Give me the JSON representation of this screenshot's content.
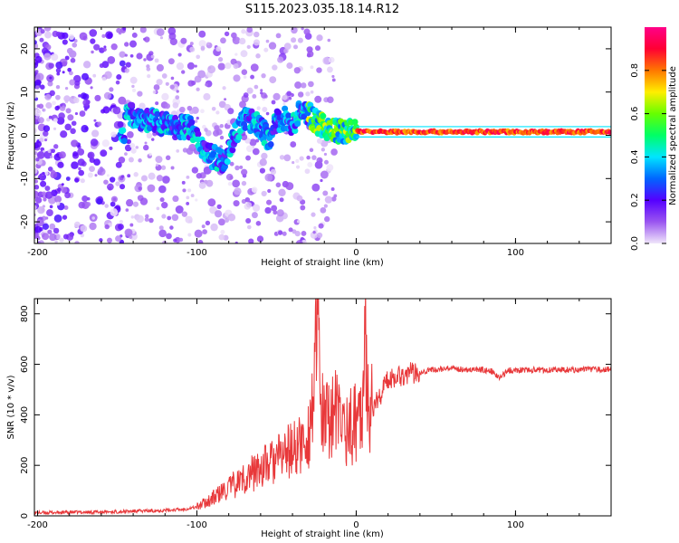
{
  "title": "S115.2023.035.18.14.R12",
  "chart_data": [
    {
      "type": "heatmap",
      "xlabel": "Height of straight line (km)",
      "ylabel": "Frequency (Hz)",
      "xlim": [
        -202,
        160
      ],
      "ylim": [
        -25,
        25
      ],
      "xticks": [
        -200,
        -100,
        0,
        100
      ],
      "xtick_labels": [
        "-200",
        "-100",
        "0",
        "100"
      ],
      "yticks": [
        -20,
        -10,
        0,
        10,
        20
      ],
      "ytick_labels": [
        "-20",
        "-10",
        "0",
        "10",
        "20"
      ],
      "colorbar": {
        "label": "Normalized spectral amplitude",
        "range": [
          0,
          1
        ],
        "ticks": [
          0,
          0.2,
          0.4,
          0.6,
          0.8
        ],
        "tick_labels": [
          "0.0",
          "0.2",
          "0.4",
          "0.6",
          "0.8"
        ],
        "colormap": [
          "#f0e6fa",
          "#9a55f0",
          "#5500ff",
          "#0066ff",
          "#00e5ff",
          "#00ff66",
          "#66ff00",
          "#ffee00",
          "#ff7700",
          "#ff0033",
          "#ff0088"
        ]
      },
      "ridge": {
        "x": [
          -145,
          -135,
          -125,
          -115,
          -105,
          -98,
          -90,
          -84,
          -80,
          -75,
          -70,
          -65,
          -60,
          -55,
          -50,
          -45,
          -40,
          -35,
          -30,
          -25,
          -20,
          -15,
          -10,
          -5,
          0,
          10,
          20,
          40,
          60,
          80,
          100,
          120,
          140,
          160
        ],
        "y": [
          5,
          4,
          3,
          2,
          2,
          -2,
          -5,
          -6,
          -3,
          1,
          4,
          3,
          2,
          -1,
          3,
          4,
          2,
          6,
          5,
          3,
          2,
          1,
          1,
          1,
          1,
          0.8,
          0.8,
          0.8,
          0.8,
          0.8,
          0.8,
          0.8,
          0.8,
          0.8
        ]
      }
    },
    {
      "type": "line",
      "xlabel": "Height of straight line (km)",
      "ylabel": "SNR (10 * v/v)",
      "xlim": [
        -202,
        160
      ],
      "ylim": [
        0,
        860
      ],
      "xticks": [
        -200,
        -100,
        0,
        100
      ],
      "xtick_labels": [
        "-200",
        "-100",
        "0",
        "100"
      ],
      "yticks": [
        0,
        200,
        400,
        600,
        800
      ],
      "ytick_labels": [
        "0",
        "200",
        "400",
        "600",
        "800"
      ],
      "color": "#e8383a",
      "series": [
        {
          "x": [
            -202,
            -180,
            -160,
            -140,
            -120,
            -110,
            -100,
            -90,
            -80,
            -70,
            -60,
            -50,
            -45,
            -40,
            -35,
            -30,
            -27,
            -25,
            -24,
            -23,
            -20,
            -15,
            -10,
            -5,
            0,
            5,
            6,
            8,
            10,
            15,
            20,
            25,
            30,
            35,
            40,
            45,
            50,
            60,
            70,
            80,
            85,
            90,
            95,
            100,
            110,
            120,
            130,
            140,
            150,
            160
          ],
          "y": [
            12,
            14,
            15,
            18,
            22,
            25,
            35,
            70,
            110,
            150,
            190,
            220,
            250,
            260,
            280,
            320,
            480,
            640,
            850,
            500,
            350,
            420,
            380,
            340,
            380,
            520,
            720,
            450,
            420,
            480,
            540,
            555,
            560,
            565,
            570,
            575,
            580,
            582,
            580,
            578,
            572,
            545,
            575,
            578,
            578,
            578,
            579,
            578,
            579,
            580
          ]
        }
      ]
    }
  ]
}
